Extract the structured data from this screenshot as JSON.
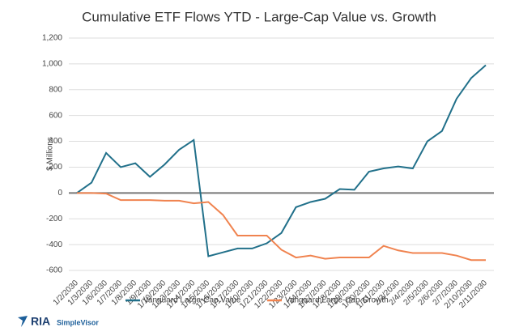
{
  "chart_data": {
    "type": "line",
    "title": "Cumulative ETF Flows YTD - Large-Cap Value vs. Growth",
    "y_label": "$ Millions",
    "categories": [
      "1/2/2030",
      "1/3/2030",
      "1/6/2030",
      "1/7/2030",
      "1/8/2030",
      "1/9/2030",
      "1/10/2030",
      "1/13/2030",
      "1/14/2030",
      "1/15/2030",
      "1/16/2030",
      "1/17/2030",
      "1/20/2030",
      "1/21/2030",
      "1/22/2030",
      "1/23/2030",
      "1/24/2030",
      "1/27/2030",
      "1/28/2030",
      "1/29/2030",
      "1/30/2030",
      "1/31/2030",
      "2/3/2030",
      "2/4/2030",
      "2/5/2030",
      "2/6/2030",
      "2/7/2030",
      "2/10/2030",
      "2/11/2030"
    ],
    "series": [
      {
        "name": "Vanguard Large-Cap Value",
        "color": "#21708a",
        "values": [
          0,
          80,
          310,
          200,
          230,
          125,
          220,
          335,
          410,
          -490,
          -460,
          -430,
          -430,
          -390,
          -310,
          -110,
          -70,
          -45,
          30,
          25,
          165,
          190,
          205,
          190,
          400,
          480,
          730,
          890,
          990
        ]
      },
      {
        "name": "Vanguard Large-Cap Growth",
        "color": "#f0834f",
        "values": [
          0,
          0,
          -5,
          -55,
          -55,
          -55,
          -60,
          -60,
          -80,
          -70,
          -170,
          -330,
          -330,
          -330,
          -440,
          -500,
          -485,
          -510,
          -500,
          -500,
          -500,
          -410,
          -445,
          -465,
          -465,
          -465,
          -485,
          -520,
          -520
        ]
      }
    ],
    "ylim": [
      -600,
      1200
    ],
    "yticks": [
      {
        "value": 1200,
        "label": "1,200"
      },
      {
        "value": 1000,
        "label": "1,000"
      },
      800,
      600,
      400,
      200,
      0,
      -200,
      -400,
      -600
    ],
    "grid": true,
    "legend": "bottom",
    "logo": {
      "brand": "RIA",
      "product": "SimpleVisor"
    }
  }
}
